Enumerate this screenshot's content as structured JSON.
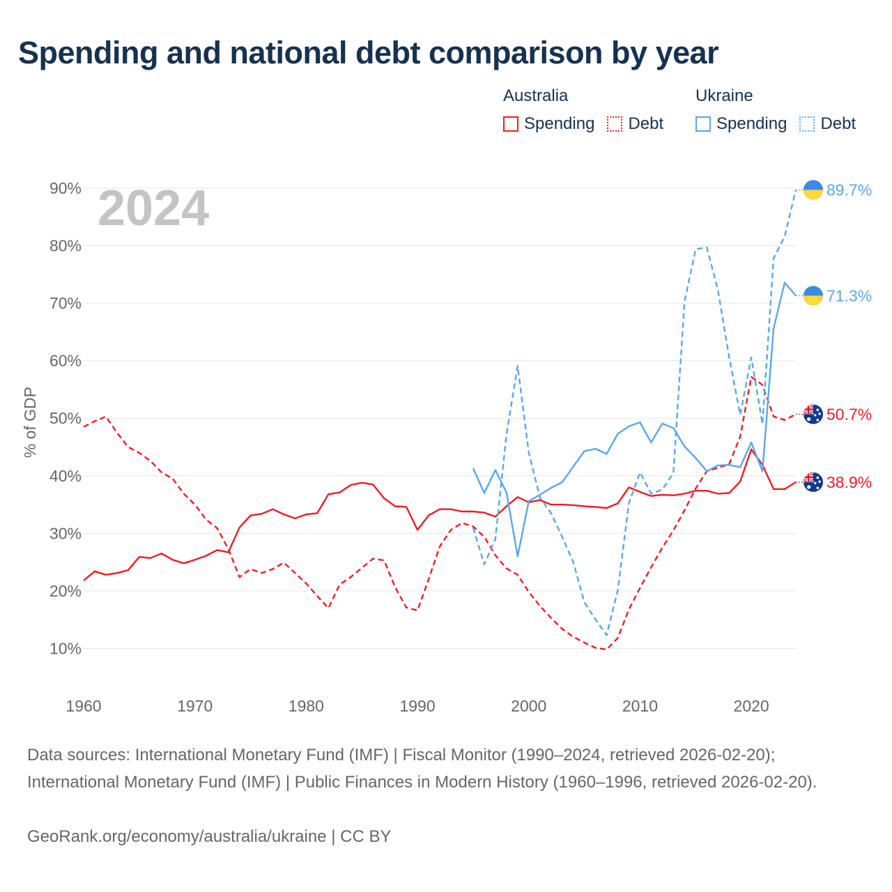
{
  "title": "Spending and national debt comparison by year",
  "year_label": "2024",
  "legend": {
    "groups": [
      {
        "country": "Australia",
        "color": "#ee1c25",
        "items": [
          {
            "label": "Spending",
            "style": "solid"
          },
          {
            "label": "Debt",
            "style": "dotted"
          }
        ]
      },
      {
        "country": "Ukraine",
        "color": "#5aa6ea",
        "items": [
          {
            "label": "Spending",
            "style": "solid"
          },
          {
            "label": "Debt",
            "style": "dotted"
          }
        ]
      }
    ]
  },
  "sources": "Data sources: International Monetary Fund (IMF) | Fiscal Monitor (1990–2024, retrieved 2026-02-20); International Monetary Fund (IMF) | Public Finances in Modern History (1960–1996, retrieved 2026-02-20).",
  "credit": "GeoRank.org/economy/australia/ukraine | CC BY",
  "chart_data": {
    "type": "line",
    "title": "Spending and national debt comparison by year",
    "xlabel": "",
    "ylabel": "% of GDP",
    "xlim": [
      1960,
      2024
    ],
    "ylim": [
      0,
      90
    ],
    "x_ticks": [
      1960,
      1970,
      1980,
      1990,
      2000,
      2010,
      2020
    ],
    "y_ticks": [
      10,
      20,
      30,
      40,
      50,
      60,
      70,
      80,
      90
    ],
    "y_tick_suffix": "%",
    "grid": true,
    "series": [
      {
        "name": "Australia Spending",
        "country": "Australia",
        "metric": "Spending",
        "color": "#ee1c25",
        "dash": "solid",
        "end_label": "38.9%",
        "flag": "australia",
        "points": [
          [
            1960,
            21.8
          ],
          [
            1961,
            23.4
          ],
          [
            1962,
            22.8
          ],
          [
            1963,
            23.1
          ],
          [
            1964,
            23.6
          ],
          [
            1965,
            25.9
          ],
          [
            1966,
            25.7
          ],
          [
            1967,
            26.5
          ],
          [
            1968,
            25.4
          ],
          [
            1969,
            24.8
          ],
          [
            1970,
            25.4
          ],
          [
            1971,
            26.1
          ],
          [
            1972,
            27.1
          ],
          [
            1973,
            26.7
          ],
          [
            1974,
            31.0
          ],
          [
            1975,
            33.1
          ],
          [
            1976,
            33.4
          ],
          [
            1977,
            34.2
          ],
          [
            1978,
            33.3
          ],
          [
            1979,
            32.6
          ],
          [
            1980,
            33.3
          ],
          [
            1981,
            33.5
          ],
          [
            1982,
            36.8
          ],
          [
            1983,
            37.1
          ],
          [
            1984,
            38.4
          ],
          [
            1985,
            38.8
          ],
          [
            1986,
            38.5
          ],
          [
            1987,
            36.1
          ],
          [
            1988,
            34.7
          ],
          [
            1989,
            34.6
          ],
          [
            1990,
            30.6
          ],
          [
            1991,
            33.1
          ],
          [
            1992,
            34.2
          ],
          [
            1993,
            34.2
          ],
          [
            1994,
            33.8
          ],
          [
            1995,
            33.8
          ],
          [
            1996,
            33.6
          ],
          [
            1997,
            32.9
          ],
          [
            1998,
            34.7
          ],
          [
            1999,
            36.3
          ],
          [
            2000,
            35.4
          ],
          [
            2001,
            35.8
          ],
          [
            2002,
            35.0
          ],
          [
            2003,
            35.0
          ],
          [
            2004,
            34.9
          ],
          [
            2005,
            34.7
          ],
          [
            2006,
            34.6
          ],
          [
            2007,
            34.4
          ],
          [
            2008,
            35.2
          ],
          [
            2009,
            38.0
          ],
          [
            2010,
            37.2
          ],
          [
            2011,
            36.5
          ],
          [
            2012,
            36.7
          ],
          [
            2013,
            36.6
          ],
          [
            2014,
            36.9
          ],
          [
            2015,
            37.4
          ],
          [
            2016,
            37.4
          ],
          [
            2017,
            36.9
          ],
          [
            2018,
            37.0
          ],
          [
            2019,
            39.0
          ],
          [
            2020,
            44.6
          ],
          [
            2021,
            41.9
          ],
          [
            2022,
            37.7
          ],
          [
            2023,
            37.7
          ],
          [
            2024,
            38.9
          ]
        ]
      },
      {
        "name": "Australia Debt",
        "country": "Australia",
        "metric": "Debt",
        "color": "#ee1c25",
        "dash": "dashed",
        "end_label": "50.7%",
        "flag": "australia",
        "points": [
          [
            1960,
            48.5
          ],
          [
            1961,
            49.5
          ],
          [
            1962,
            50.3
          ],
          [
            1963,
            47.5
          ],
          [
            1964,
            45.0
          ],
          [
            1965,
            44.0
          ],
          [
            1966,
            42.6
          ],
          [
            1967,
            40.6
          ],
          [
            1968,
            39.5
          ],
          [
            1969,
            36.9
          ],
          [
            1970,
            35.0
          ],
          [
            1971,
            32.4
          ],
          [
            1972,
            30.9
          ],
          [
            1973,
            27.3
          ],
          [
            1974,
            22.4
          ],
          [
            1975,
            23.8
          ],
          [
            1976,
            23.1
          ],
          [
            1977,
            23.8
          ],
          [
            1978,
            24.9
          ],
          [
            1979,
            23.1
          ],
          [
            1980,
            21.3
          ],
          [
            1981,
            19.1
          ],
          [
            1982,
            17.0
          ],
          [
            1983,
            21.1
          ],
          [
            1984,
            22.4
          ],
          [
            1985,
            24.0
          ],
          [
            1986,
            25.6
          ],
          [
            1987,
            25.3
          ],
          [
            1988,
            20.6
          ],
          [
            1989,
            17.1
          ],
          [
            1990,
            16.6
          ],
          [
            1991,
            22.0
          ],
          [
            1992,
            27.7
          ],
          [
            1993,
            30.6
          ],
          [
            1994,
            31.8
          ],
          [
            1995,
            31.2
          ],
          [
            1996,
            29.4
          ],
          [
            1997,
            26.2
          ],
          [
            1998,
            23.9
          ],
          [
            1999,
            22.8
          ],
          [
            2000,
            19.8
          ],
          [
            2001,
            17.4
          ],
          [
            2002,
            15.3
          ],
          [
            2003,
            13.4
          ],
          [
            2004,
            12.0
          ],
          [
            2005,
            11.0
          ],
          [
            2006,
            10.1
          ],
          [
            2007,
            9.8
          ],
          [
            2008,
            11.8
          ],
          [
            2009,
            16.8
          ],
          [
            2010,
            20.5
          ],
          [
            2011,
            24.1
          ],
          [
            2012,
            27.5
          ],
          [
            2013,
            30.5
          ],
          [
            2014,
            34.0
          ],
          [
            2015,
            37.8
          ],
          [
            2016,
            40.8
          ],
          [
            2017,
            41.4
          ],
          [
            2018,
            42.0
          ],
          [
            2019,
            46.8
          ],
          [
            2020,
            57.2
          ],
          [
            2021,
            55.8
          ],
          [
            2022,
            50.3
          ],
          [
            2023,
            49.7
          ],
          [
            2024,
            50.7
          ]
        ]
      },
      {
        "name": "Ukraine Spending",
        "country": "Ukraine",
        "metric": "Spending",
        "color": "#5aa6ea",
        "dash": "solid",
        "end_label": "71.3%",
        "flag": "ukraine",
        "points": [
          [
            1995,
            41.3
          ],
          [
            1996,
            37.0
          ],
          [
            1997,
            41.0
          ],
          [
            1998,
            37.1
          ],
          [
            1999,
            26.0
          ],
          [
            2000,
            35.6
          ],
          [
            2001,
            36.7
          ],
          [
            2002,
            37.9
          ],
          [
            2003,
            38.9
          ],
          [
            2004,
            41.6
          ],
          [
            2005,
            44.3
          ],
          [
            2006,
            44.7
          ],
          [
            2007,
            43.8
          ],
          [
            2008,
            47.3
          ],
          [
            2009,
            48.6
          ],
          [
            2010,
            49.3
          ],
          [
            2011,
            45.8
          ],
          [
            2012,
            49.1
          ],
          [
            2013,
            48.3
          ],
          [
            2014,
            45.1
          ],
          [
            2015,
            43.1
          ],
          [
            2016,
            40.8
          ],
          [
            2017,
            41.8
          ],
          [
            2018,
            41.9
          ],
          [
            2019,
            41.5
          ],
          [
            2020,
            45.8
          ],
          [
            2021,
            40.8
          ],
          [
            2022,
            65.6
          ],
          [
            2023,
            73.6
          ],
          [
            2024,
            71.3
          ]
        ]
      },
      {
        "name": "Ukraine Debt",
        "country": "Ukraine",
        "metric": "Debt",
        "color": "#5aa6ea",
        "dash": "dashed",
        "end_label": "89.7%",
        "flag": "ukraine",
        "points": [
          [
            1995,
            31.0
          ],
          [
            1996,
            24.6
          ],
          [
            1997,
            29.0
          ],
          [
            1998,
            47.2
          ],
          [
            1999,
            59.1
          ],
          [
            2000,
            44.0
          ],
          [
            2001,
            36.3
          ],
          [
            2002,
            33.5
          ],
          [
            2003,
            29.4
          ],
          [
            2004,
            25.0
          ],
          [
            2005,
            18.0
          ],
          [
            2006,
            15.0
          ],
          [
            2007,
            12.3
          ],
          [
            2008,
            20.1
          ],
          [
            2009,
            35.3
          ],
          [
            2010,
            40.6
          ],
          [
            2011,
            36.9
          ],
          [
            2012,
            37.6
          ],
          [
            2013,
            40.5
          ],
          [
            2014,
            70.3
          ],
          [
            2015,
            79.4
          ],
          [
            2016,
            79.7
          ],
          [
            2017,
            72.3
          ],
          [
            2018,
            60.7
          ],
          [
            2019,
            50.6
          ],
          [
            2020,
            60.6
          ],
          [
            2021,
            49.0
          ],
          [
            2022,
            77.8
          ],
          [
            2023,
            81.6
          ],
          [
            2024,
            89.7
          ]
        ]
      }
    ]
  }
}
